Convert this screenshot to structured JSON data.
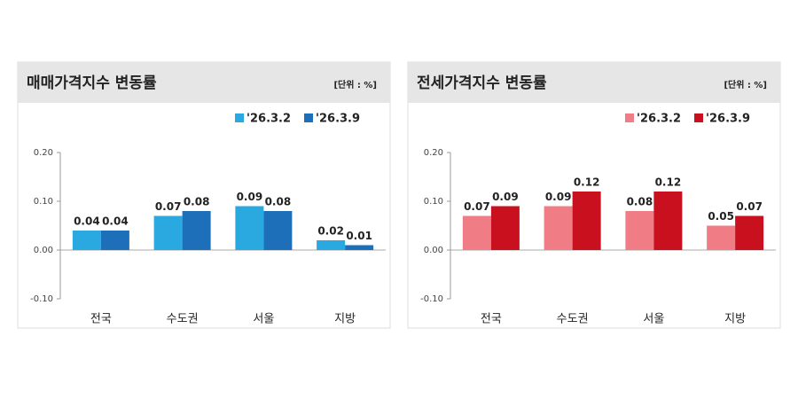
{
  "chart_data": [
    {
      "type": "bar",
      "title": "매매가격지수 변동률",
      "unit": "[단위 : %]",
      "categories": [
        "전국",
        "수도권",
        "서울",
        "지방"
      ],
      "series": [
        {
          "name": "'26.3.2",
          "color": "#2aa8e0",
          "values": [
            0.04,
            0.07,
            0.09,
            0.02
          ]
        },
        {
          "name": "'26.3.9",
          "color": "#1e6fba",
          "values": [
            0.04,
            0.08,
            0.08,
            0.01
          ]
        }
      ],
      "ylim": [
        -0.1,
        0.2
      ],
      "yticks": [
        {
          "value": 0.2,
          "label": "0.20"
        },
        {
          "value": 0.1,
          "label": "0.10"
        },
        {
          "value": 0,
          "label": "0.00"
        },
        {
          "value": -0.1,
          "label": "-0.10"
        }
      ],
      "grid": false
    },
    {
      "type": "bar",
      "title": "전세가격지수 변동률",
      "unit": "[단위 : %]",
      "categories": [
        "전국",
        "수도권",
        "서울",
        "지방"
      ],
      "series": [
        {
          "name": "'26.3.2",
          "color": "#f07c86",
          "values": [
            0.07,
            0.09,
            0.08,
            0.05
          ]
        },
        {
          "name": "'26.3.9",
          "color": "#c8101e",
          "values": [
            0.09,
            0.12,
            0.12,
            0.07
          ]
        }
      ],
      "ylim": [
        -0.1,
        0.2
      ],
      "yticks": [
        {
          "value": 0.2,
          "label": "0.20"
        },
        {
          "value": 0.1,
          "label": "0.10"
        },
        {
          "value": 0,
          "label": "0.00"
        },
        {
          "value": -0.1,
          "label": "-0.10"
        }
      ],
      "grid": false
    }
  ]
}
